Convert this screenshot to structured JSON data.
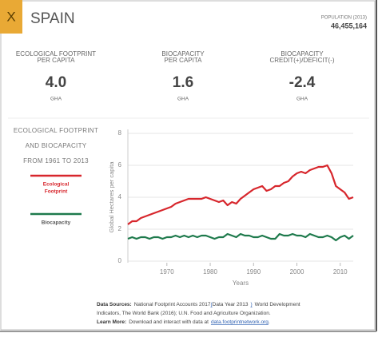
{
  "header": {
    "close": "X",
    "country": "SPAIN",
    "population_label": "POPULATION (2013)",
    "population": "46,455,164"
  },
  "stats": [
    {
      "label_lines": [
        "ECOLOGICAL FOOTPRINT",
        "PER CAPITA"
      ],
      "value": "4.0",
      "unit": "GHA"
    },
    {
      "label_lines": [
        "BIOCAPACITY",
        "PER CAPITA"
      ],
      "value": "1.6",
      "unit": "GHA"
    },
    {
      "label_lines": [
        "BIOCAPACITY",
        "CREDIT(+)/DEFICIT(-)"
      ],
      "value": "-2.4",
      "unit": "GHA"
    }
  ],
  "side_title_lines": [
    "ECOLOGICAL FOOTPRINT",
    "AND BIOCAPACITY",
    "FROM 1961 TO 2013"
  ],
  "chart_data": {
    "type": "line",
    "x_label": "Years",
    "y_label": "Global Hectares per capita",
    "x": [
      1961,
      1962,
      1963,
      1964,
      1965,
      1966,
      1967,
      1968,
      1969,
      1970,
      1971,
      1972,
      1973,
      1974,
      1975,
      1976,
      1977,
      1978,
      1979,
      1980,
      1981,
      1982,
      1983,
      1984,
      1985,
      1986,
      1987,
      1988,
      1989,
      1990,
      1991,
      1992,
      1993,
      1994,
      1995,
      1996,
      1997,
      1998,
      1999,
      2000,
      2001,
      2002,
      2003,
      2004,
      2005,
      2006,
      2007,
      2008,
      2009,
      2010,
      2011,
      2012,
      2013
    ],
    "series": [
      {
        "name_lines": [
          "Ecological",
          "Footprint"
        ],
        "color": "#d7262c",
        "values": [
          2.3,
          2.5,
          2.5,
          2.7,
          2.8,
          2.9,
          3.0,
          3.1,
          3.2,
          3.3,
          3.4,
          3.6,
          3.7,
          3.8,
          3.9,
          3.9,
          3.9,
          3.9,
          4.0,
          3.9,
          3.8,
          3.7,
          3.8,
          3.5,
          3.7,
          3.6,
          3.9,
          4.1,
          4.3,
          4.5,
          4.6,
          4.7,
          4.4,
          4.5,
          4.7,
          4.7,
          4.9,
          5.0,
          5.3,
          5.5,
          5.6,
          5.5,
          5.7,
          5.8,
          5.9,
          5.9,
          6.0,
          5.5,
          4.7,
          4.5,
          4.3,
          3.9,
          4.0
        ]
      },
      {
        "name_lines": [
          "Biocapacity"
        ],
        "color": "#1e7a4c",
        "values": [
          1.4,
          1.5,
          1.4,
          1.5,
          1.5,
          1.4,
          1.5,
          1.5,
          1.4,
          1.5,
          1.5,
          1.6,
          1.5,
          1.6,
          1.5,
          1.6,
          1.5,
          1.6,
          1.6,
          1.5,
          1.4,
          1.5,
          1.5,
          1.7,
          1.6,
          1.5,
          1.7,
          1.6,
          1.6,
          1.5,
          1.5,
          1.6,
          1.5,
          1.4,
          1.4,
          1.7,
          1.6,
          1.6,
          1.7,
          1.6,
          1.6,
          1.5,
          1.7,
          1.6,
          1.5,
          1.5,
          1.6,
          1.5,
          1.3,
          1.5,
          1.6,
          1.4,
          1.6
        ]
      }
    ],
    "xlim": [
      1961,
      2013
    ],
    "ylim": [
      0,
      8
    ],
    "xticks": [
      1970,
      1980,
      1990,
      2000,
      2010
    ],
    "yticks": [
      0,
      2,
      4,
      6,
      8
    ],
    "grid": true
  },
  "footer": {
    "lines": [
      [
        "Data Sources:",
        "National Footprint Accounts 2017",
        "(",
        "Data Year 2013",
        ")",
        "World Development"
      ],
      [
        "Indicators, The World Bank (2016); U.N. Food and Agriculture Organization."
      ],
      [
        "Learn More:",
        "Download and interact with data at",
        "data.footprintnetwork.org",
        "."
      ]
    ]
  }
}
